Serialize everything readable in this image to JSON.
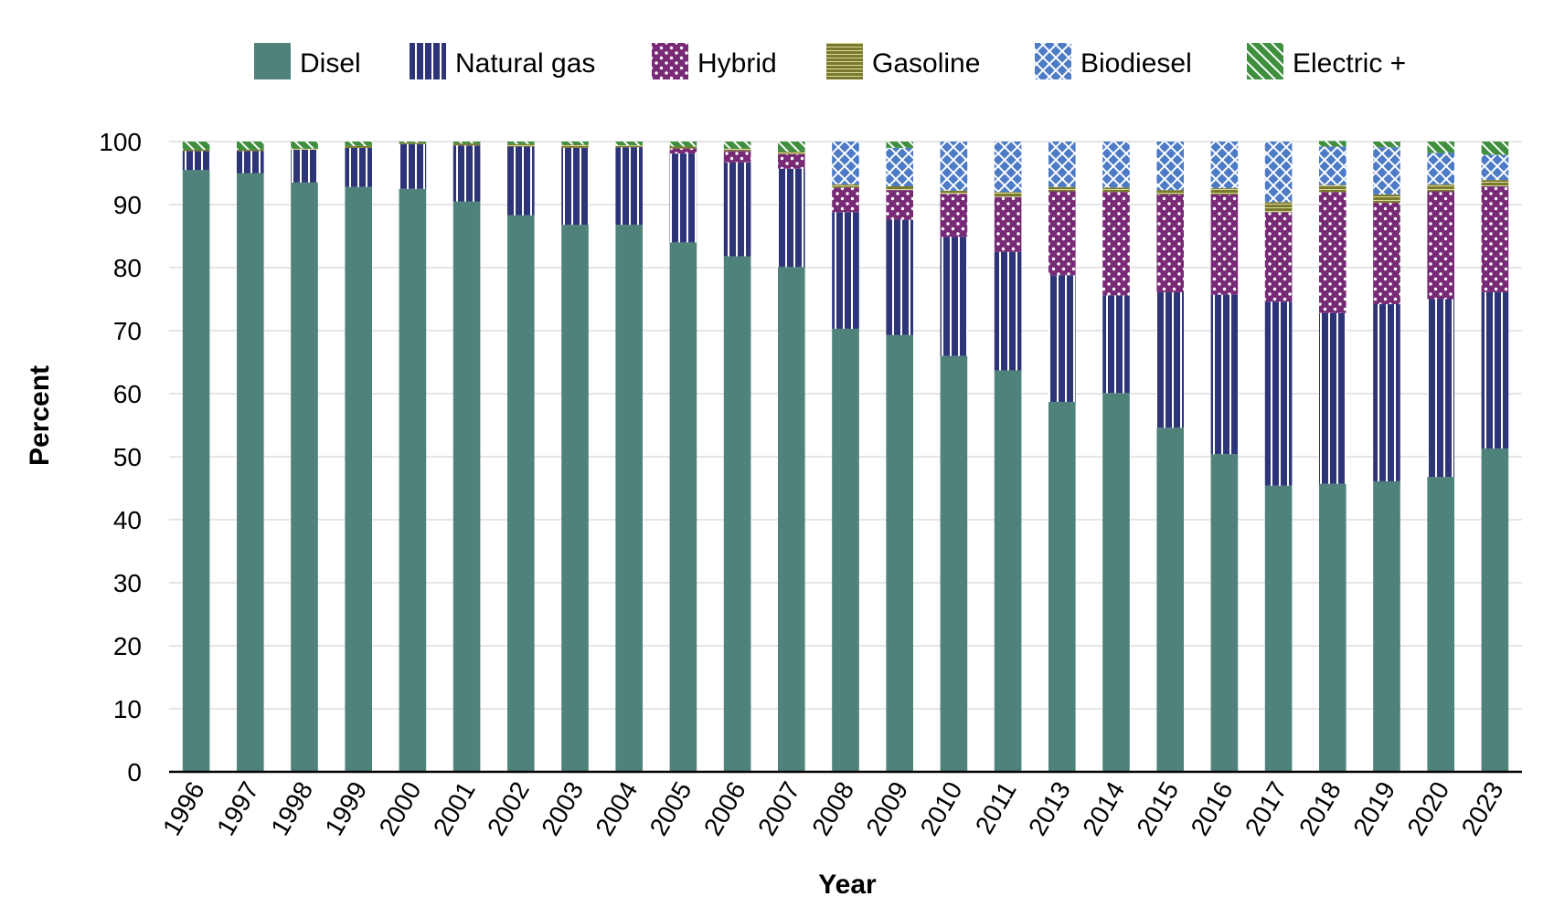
{
  "chart_data": {
    "type": "bar",
    "stacked": true,
    "title": "",
    "xlabel": "Year",
    "ylabel": "Percent",
    "ylim": [
      0,
      100
    ],
    "yticks": [
      0,
      10,
      20,
      30,
      40,
      50,
      60,
      70,
      80,
      90,
      100
    ],
    "grid": true,
    "legend_position": "top",
    "categories": [
      "1996",
      "1997",
      "1998",
      "1999",
      "2000",
      "2001",
      "2002",
      "2003",
      "2004",
      "2005",
      "2006",
      "2007",
      "2008",
      "2009",
      "2010",
      "2011",
      "2013",
      "2014",
      "2015",
      "2016",
      "2017",
      "2018",
      "2019",
      "2020",
      "2023"
    ],
    "series": [
      {
        "name": "Disel",
        "color": "#4e827a",
        "pattern": "solid",
        "values": [
          95.5,
          95.0,
          93.5,
          92.8,
          92.5,
          90.5,
          88.3,
          86.8,
          86.8,
          84.0,
          81.8,
          80.1,
          70.3,
          69.3,
          66.0,
          63.7,
          58.7,
          60.1,
          54.6,
          50.4,
          45.4,
          45.7,
          46.1,
          46.8,
          51.3
        ]
      },
      {
        "name": "Natural gas",
        "color": "#2e3478",
        "pattern": "vertical-lines",
        "values": [
          3.0,
          3.5,
          5.2,
          6.2,
          7.1,
          8.9,
          10.9,
          12.2,
          12.3,
          14.1,
          14.9,
          15.6,
          18.5,
          18.3,
          18.9,
          18.8,
          20.1,
          15.5,
          21.5,
          25.3,
          29.2,
          27.1,
          28.1,
          28.2,
          24.8
        ]
      },
      {
        "name": "Hybrid",
        "color": "#782a76",
        "pattern": "dots",
        "values": [
          0,
          0,
          0,
          0,
          0,
          0,
          0,
          0,
          0,
          0.8,
          1.8,
          2.3,
          3.9,
          4.7,
          6.8,
          8.7,
          13.3,
          16.4,
          15.5,
          15.9,
          14.2,
          19.2,
          16.1,
          17.1,
          16.8
        ]
      },
      {
        "name": "Gasoline",
        "color": "#7a7a2e",
        "pattern": "horizontal-lines",
        "values": [
          0.2,
          0.2,
          0.2,
          0.3,
          0.2,
          0.3,
          0.4,
          0.5,
          0.3,
          0.3,
          0.4,
          0.4,
          0.5,
          0.6,
          0.5,
          0.8,
          0.7,
          0.7,
          0.7,
          1.0,
          1.6,
          1.1,
          1.3,
          1.1,
          1.0
        ]
      },
      {
        "name": "Biodiesel",
        "color": "#4d7bc6",
        "pattern": "crosshatch",
        "values": [
          0,
          0,
          0,
          0,
          0,
          0,
          0,
          0,
          0,
          0,
          0,
          0,
          6.8,
          6.1,
          7.8,
          8.0,
          7.2,
          7.3,
          7.7,
          7.4,
          9.6,
          6.1,
          7.5,
          5.0,
          4.0
        ]
      },
      {
        "name": "Electric +",
        "color": "#3f8f3f",
        "pattern": "diagonal",
        "values": [
          1.3,
          1.3,
          1.1,
          0.7,
          0.2,
          0.3,
          0.4,
          0.5,
          0.6,
          0.8,
          1.1,
          1.6,
          0,
          1.0,
          0,
          0,
          0,
          0,
          0,
          0,
          0,
          0.9,
          0.9,
          1.8,
          2.1
        ]
      }
    ]
  }
}
